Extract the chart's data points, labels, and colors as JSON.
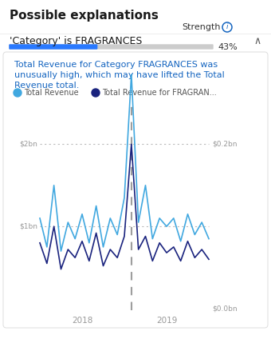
{
  "title": "Possible explanations",
  "strength_label": "Strength",
  "category_label": "'Category' is FRAGRANCES",
  "bar_pct": 0.43,
  "bar_pct_text": "43%",
  "desc_line1": "Total Revenue for Category FRAGRANCES was",
  "desc_line2": "unusually high, which may have lifted the Total",
  "desc_line3": "Revenue total.",
  "legend1": "Total Revenue",
  "legend2": "Total Revenue for FRAGRAN...",
  "legend1_color": "#41a8e0",
  "legend2_color": "#1a237e",
  "left_ylabel_top": "$2bn",
  "left_ylabel_mid": "$1bn",
  "right_ylabel_top": "$0.2bn",
  "right_ylabel_bot": "$0.0bn",
  "x_tick_2018": "2018",
  "x_tick_2019": "2019",
  "bar_color": "#2979ff",
  "bar_bg_color": "#cccccc",
  "vline_color": "#9e9e9e",
  "bg_color": "#ffffff",
  "total_revenue": [
    1.1,
    0.75,
    1.5,
    0.7,
    1.05,
    0.85,
    1.15,
    0.8,
    1.25,
    0.75,
    1.1,
    0.9,
    1.35,
    2.85,
    1.05,
    1.5,
    0.85,
    1.1,
    1.0,
    1.1,
    0.82,
    1.15,
    0.9,
    1.05,
    0.85
  ],
  "frag_revenue": [
    0.08,
    0.055,
    0.1,
    0.048,
    0.072,
    0.062,
    0.082,
    0.058,
    0.092,
    0.052,
    0.072,
    0.062,
    0.088,
    0.2,
    0.072,
    0.088,
    0.058,
    0.08,
    0.068,
    0.075,
    0.058,
    0.082,
    0.062,
    0.072,
    0.06
  ],
  "anomaly_idx": 13,
  "n_points": 25
}
